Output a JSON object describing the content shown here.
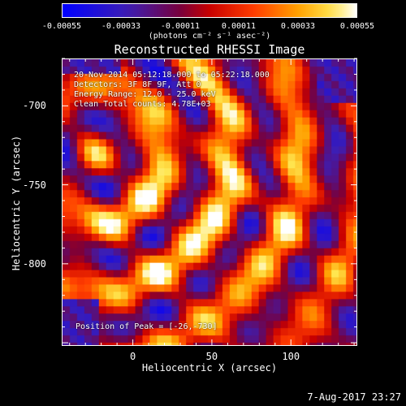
{
  "chart_data": {
    "type": "heatmap",
    "title": "Reconstructed RHESSI Image",
    "xlabel": "Heliocentric X (arcsec)",
    "ylabel": "Heliocentric Y (arcsec)",
    "xlim": [
      -45,
      142
    ],
    "ylim": [
      -852,
      -670
    ],
    "xticks": [
      "0",
      "50",
      "100"
    ],
    "xtick_values": [
      0,
      50,
      100
    ],
    "yticks": [
      "-700",
      "-750",
      "-800"
    ],
    "ytick_values": [
      -700,
      -750,
      -800
    ],
    "colorbar": {
      "ticks": [
        "-0.00055",
        "-0.00033",
        "-0.00011",
        "0.00011",
        "0.00033",
        "0.00055"
      ],
      "units": "(photons cm⁻² s⁻¹ asec⁻²)",
      "range": [
        -0.00055,
        0.00055
      ],
      "colormap": "blue-purple-red-orange-yellow-white"
    },
    "annotations": {
      "time": "20-Nov-2014 05:12:18.000 to 05:22:18.000",
      "detectors": "Detectors: 3F 8F 9F, Att 0",
      "energy": "Energy Range: 12.0 - 25.0 keV",
      "method": "Clean     Total counts: 4.78E+03",
      "peak": "Position of Peak = [-26,-730]"
    },
    "peak_position": [
      -26,
      -730
    ]
  },
  "timestamp": "7-Aug-2017 23:27",
  "colors": {
    "background": "#000000",
    "foreground": "#ffffff"
  }
}
